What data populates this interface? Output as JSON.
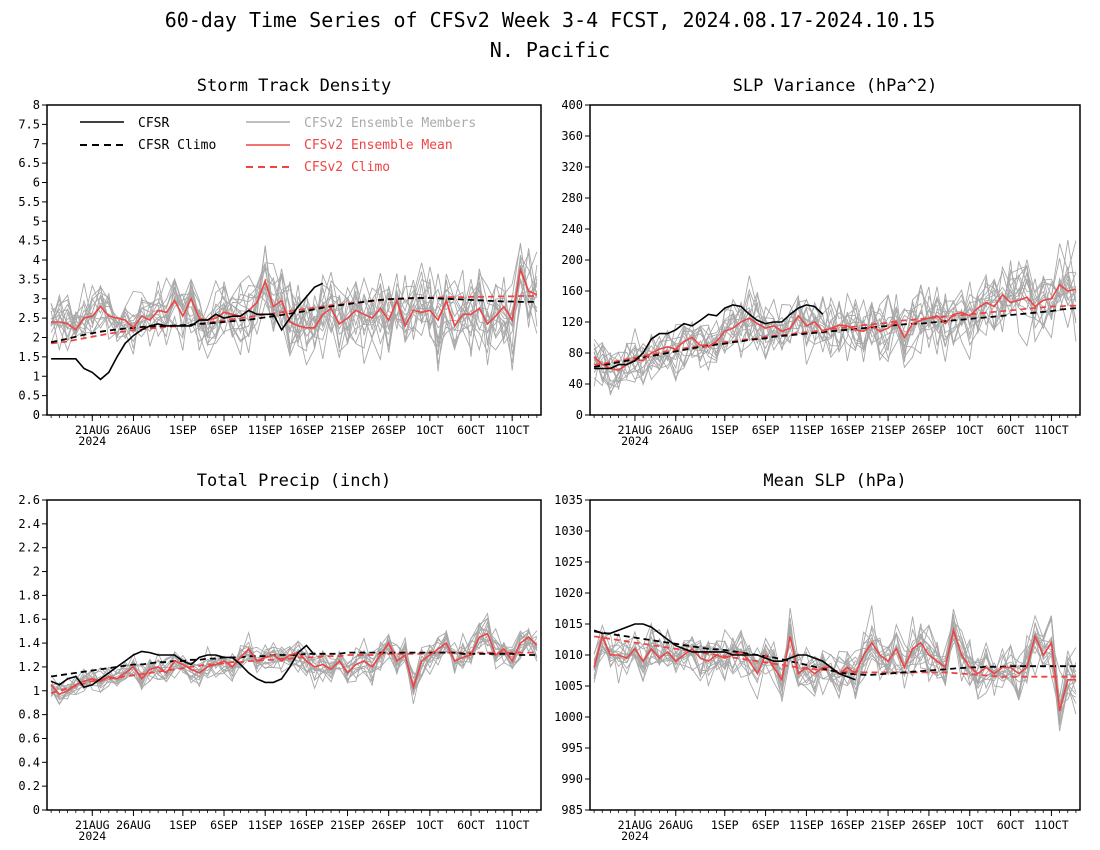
{
  "figure": {
    "title": "60-day Time Series of CFSv2 Week 3-4 FCST, 2024.08.17-2024.10.15",
    "subtitle": "N. Pacific"
  },
  "legend": {
    "cfsr": "CFSR",
    "cfsr_climo": "CFSR Climo",
    "members": "CFSv2 Ensemble Members",
    "ens_mean": "CFSv2 Ensemble Mean",
    "cfsv2_climo": "CFSv2 Climo"
  },
  "colors": {
    "cfsr": "#000000",
    "members": "#a8a8a8",
    "ens_mean": "#ee4444",
    "members_legend": "#aaaaaa"
  },
  "x_axis": {
    "ticks": [
      {
        "day": 5,
        "label": "21AUG"
      },
      {
        "day": 10,
        "label": "26AUG"
      },
      {
        "day": 16,
        "label": "1SEP"
      },
      {
        "day": 21,
        "label": "6SEP"
      },
      {
        "day": 26,
        "label": "11SEP"
      },
      {
        "day": 31,
        "label": "16SEP"
      },
      {
        "day": 36,
        "label": "21SEP"
      },
      {
        "day": 41,
        "label": "26SEP"
      },
      {
        "day": 46,
        "label": "1OCT"
      },
      {
        "day": 51,
        "label": "6OCT"
      },
      {
        "day": 56,
        "label": "11OCT"
      }
    ],
    "year_label": "2024"
  },
  "chart_data": [
    {
      "type": "line",
      "title": "Storm Track Density",
      "ylim": [
        0,
        8
      ],
      "yticks": [
        "0",
        "0.5",
        "1",
        "1.5",
        "2",
        "2.5",
        "3",
        "3.5",
        "4",
        "4.5",
        "5",
        "5.5",
        "6",
        "6.5",
        "7",
        "7.5",
        "8"
      ],
      "x": "day index 0-59 (2024-08-17 to 2024-10-15)",
      "series": [
        {
          "name": "CFSR",
          "values": [
            1.45,
            1.45,
            1.45,
            1.45,
            1.2,
            1.1,
            0.92,
            1.1,
            1.5,
            1.85,
            2.05,
            2.2,
            2.3,
            2.35,
            2.3,
            2.3,
            2.3,
            2.3,
            2.45,
            2.45,
            2.6,
            2.5,
            2.55,
            2.55,
            2.7,
            2.6,
            2.6,
            2.6,
            2.2,
            2.5,
            2.8,
            3.05,
            3.3,
            3.4
          ]
        },
        {
          "name": "CFSR Climo",
          "values": [
            1.88,
            1.92,
            1.97,
            2.02,
            2.07,
            2.11,
            2.15,
            2.18,
            2.21,
            2.23,
            2.25,
            2.27,
            2.28,
            2.29,
            2.3,
            2.31,
            2.32,
            2.33,
            2.35,
            2.36,
            2.38,
            2.4,
            2.42,
            2.44,
            2.46,
            2.49,
            2.52,
            2.55,
            2.58,
            2.62,
            2.65,
            2.69,
            2.73,
            2.77,
            2.8,
            2.83,
            2.86,
            2.89,
            2.92,
            2.95,
            2.97,
            2.99,
            3.0,
            3.01,
            3.02,
            3.02,
            3.02,
            3.01,
            3.0,
            2.99,
            2.98,
            2.97,
            2.96,
            2.95,
            2.94,
            2.93,
            2.93,
            2.92,
            2.92,
            2.92
          ]
        },
        {
          "name": "CFSv2 Ensemble Mean",
          "values": [
            2.4,
            2.4,
            2.35,
            2.2,
            2.5,
            2.55,
            2.8,
            2.55,
            2.5,
            2.45,
            2.25,
            2.55,
            2.45,
            2.7,
            2.65,
            2.95,
            2.55,
            3.0,
            2.5,
            2.45,
            2.5,
            2.65,
            2.6,
            2.55,
            2.7,
            2.9,
            3.45,
            2.8,
            2.95,
            2.4,
            2.3,
            2.25,
            2.25,
            2.6,
            2.75,
            2.35,
            2.5,
            2.7,
            2.6,
            2.5,
            2.75,
            2.45,
            2.95,
            2.3,
            2.7,
            2.65,
            2.7,
            2.45,
            2.95,
            2.3,
            2.6,
            2.6,
            2.75,
            2.35,
            2.55,
            2.8,
            2.45,
            3.75,
            3.2,
            3.1
          ]
        },
        {
          "name": "CFSv2 Climo",
          "values": [
            1.85,
            1.87,
            1.9,
            1.94,
            1.98,
            2.02,
            2.06,
            2.1,
            2.13,
            2.16,
            2.19,
            2.21,
            2.23,
            2.25,
            2.27,
            2.29,
            2.31,
            2.33,
            2.36,
            2.38,
            2.41,
            2.44,
            2.47,
            2.5,
            2.53,
            2.56,
            2.59,
            2.62,
            2.65,
            2.68,
            2.71,
            2.74,
            2.77,
            2.8,
            2.83,
            2.85,
            2.88,
            2.9,
            2.92,
            2.94,
            2.96,
            2.98,
            2.99,
            3.0,
            3.01,
            3.02,
            3.03,
            3.03,
            3.04,
            3.04,
            3.04,
            3.05,
            3.05,
            3.05,
            3.06,
            3.06,
            3.06,
            3.07,
            3.07,
            3.07
          ]
        }
      ]
    },
    {
      "type": "line",
      "title": "SLP Variance (hPa^2)",
      "ylim": [
        0,
        400
      ],
      "yticks": [
        "0",
        "40",
        "80",
        "120",
        "160",
        "200",
        "240",
        "280",
        "320",
        "360",
        "400"
      ],
      "x": "day index 0-59 (2024-08-17 to 2024-10-15)",
      "series": [
        {
          "name": "CFSR",
          "values": [
            60,
            60,
            60,
            65,
            65,
            70,
            80,
            98,
            105,
            105,
            110,
            118,
            115,
            122,
            130,
            128,
            138,
            142,
            140,
            130,
            122,
            118,
            120,
            120,
            130,
            138,
            142,
            140,
            130
          ]
        },
        {
          "name": "CFSR Climo",
          "values": [
            62,
            64,
            66,
            68,
            70,
            72,
            74,
            76,
            78,
            80,
            82,
            84,
            86,
            88,
            89,
            91,
            92,
            94,
            95,
            97,
            98,
            99,
            101,
            102,
            103,
            104,
            105,
            106,
            107,
            108,
            109,
            110,
            111,
            112,
            113,
            114,
            115,
            116,
            117,
            118,
            118,
            119,
            120,
            121,
            122,
            123,
            124,
            125,
            126,
            127,
            128,
            129,
            130,
            131,
            132,
            133,
            134,
            136,
            137,
            138
          ]
        },
        {
          "name": "CFSv2 Ensemble Mean",
          "values": [
            75,
            65,
            60,
            58,
            65,
            72,
            70,
            80,
            85,
            88,
            85,
            95,
            100,
            90,
            88,
            95,
            108,
            112,
            120,
            125,
            118,
            112,
            115,
            108,
            112,
            128,
            115,
            120,
            108,
            112,
            116,
            115,
            110,
            108,
            115,
            108,
            112,
            120,
            100,
            118,
            122,
            125,
            128,
            118,
            130,
            132,
            128,
            138,
            145,
            140,
            155,
            145,
            148,
            152,
            140,
            148,
            150,
            168,
            160,
            162
          ]
        },
        {
          "name": "CFSv2 Climo",
          "values": [
            65,
            66,
            68,
            70,
            72,
            74,
            76,
            78,
            80,
            82,
            84,
            86,
            88,
            89,
            91,
            92,
            94,
            95,
            97,
            98,
            99,
            101,
            102,
            103,
            104,
            106,
            107,
            108,
            109,
            111,
            112,
            113,
            114,
            116,
            117,
            118,
            119,
            121,
            122,
            123,
            124,
            125,
            126,
            127,
            128,
            129,
            130,
            131,
            132,
            133,
            134,
            135,
            136,
            137,
            138,
            139,
            140,
            140,
            141,
            141
          ]
        }
      ]
    },
    {
      "type": "line",
      "title": "Total Precip (inch)",
      "ylim": [
        0,
        2.6
      ],
      "yticks": [
        "0",
        "0.2",
        "0.4",
        "0.6",
        "0.8",
        "1",
        "1.2",
        "1.4",
        "1.6",
        "1.8",
        "2",
        "2.2",
        "2.4",
        "2.6"
      ],
      "x": "day index 0-59 (2024-08-17 to 2024-10-15)",
      "series": [
        {
          "name": "CFSR",
          "values": [
            1.08,
            1.05,
            1.1,
            1.12,
            1.03,
            1.05,
            1.1,
            1.15,
            1.2,
            1.25,
            1.3,
            1.33,
            1.32,
            1.3,
            1.3,
            1.3,
            1.25,
            1.22,
            1.28,
            1.3,
            1.3,
            1.28,
            1.28,
            1.22,
            1.15,
            1.1,
            1.07,
            1.07,
            1.1,
            1.2,
            1.32,
            1.38,
            1.3
          ]
        },
        {
          "name": "CFSR Climo",
          "values": [
            1.12,
            1.13,
            1.14,
            1.15,
            1.16,
            1.17,
            1.18,
            1.19,
            1.2,
            1.21,
            1.22,
            1.22,
            1.23,
            1.24,
            1.24,
            1.25,
            1.25,
            1.26,
            1.26,
            1.27,
            1.27,
            1.28,
            1.28,
            1.28,
            1.29,
            1.29,
            1.29,
            1.3,
            1.3,
            1.3,
            1.3,
            1.31,
            1.31,
            1.31,
            1.31,
            1.31,
            1.32,
            1.32,
            1.32,
            1.32,
            1.32,
            1.32,
            1.32,
            1.32,
            1.32,
            1.32,
            1.32,
            1.32,
            1.32,
            1.32,
            1.31,
            1.31,
            1.31,
            1.31,
            1.31,
            1.31,
            1.31,
            1.3,
            1.3,
            1.3
          ]
        },
        {
          "name": "CFSv2 Ensemble Mean",
          "values": [
            1.05,
            0.97,
            1.0,
            1.05,
            1.08,
            1.1,
            1.08,
            1.12,
            1.1,
            1.15,
            1.2,
            1.1,
            1.18,
            1.2,
            1.15,
            1.25,
            1.22,
            1.18,
            1.15,
            1.2,
            1.22,
            1.25,
            1.2,
            1.28,
            1.35,
            1.25,
            1.28,
            1.3,
            1.25,
            1.3,
            1.32,
            1.25,
            1.2,
            1.22,
            1.18,
            1.25,
            1.15,
            1.22,
            1.25,
            1.2,
            1.3,
            1.4,
            1.25,
            1.3,
            1.03,
            1.25,
            1.3,
            1.35,
            1.4,
            1.25,
            1.28,
            1.3,
            1.45,
            1.48,
            1.3,
            1.35,
            1.25,
            1.4,
            1.45,
            1.38
          ]
        },
        {
          "name": "CFSv2 Climo",
          "values": [
            0.98,
            1.0,
            1.02,
            1.04,
            1.06,
            1.08,
            1.09,
            1.1,
            1.11,
            1.12,
            1.13,
            1.14,
            1.15,
            1.16,
            1.17,
            1.18,
            1.19,
            1.2,
            1.21,
            1.22,
            1.22,
            1.23,
            1.24,
            1.24,
            1.25,
            1.25,
            1.26,
            1.26,
            1.27,
            1.27,
            1.28,
            1.28,
            1.28,
            1.29,
            1.29,
            1.29,
            1.3,
            1.3,
            1.3,
            1.3,
            1.31,
            1.31,
            1.31,
            1.31,
            1.31,
            1.31,
            1.32,
            1.32,
            1.32,
            1.32,
            1.32,
            1.32,
            1.32,
            1.32,
            1.32,
            1.32,
            1.32,
            1.32,
            1.32,
            1.32
          ]
        }
      ]
    },
    {
      "type": "line",
      "title": "Mean SLP (hPa)",
      "ylim": [
        985,
        1035
      ],
      "yticks": [
        "985",
        "990",
        "995",
        "1000",
        "1005",
        "1010",
        "1015",
        "1020",
        "1025",
        "1030",
        "1035"
      ],
      "x": "day index 0-59 (2024-08-17 to 2024-10-15)",
      "series": [
        {
          "name": "CFSR",
          "values": [
            1014,
            1013.5,
            1013.5,
            1014,
            1014.5,
            1015,
            1015,
            1014.5,
            1013.5,
            1012.5,
            1011.5,
            1011,
            1010.5,
            1010.5,
            1010.5,
            1010.5,
            1010.5,
            1010,
            1010,
            1010,
            1010,
            1009.5,
            1009,
            1009,
            1009.5,
            1010,
            1010,
            1009.5,
            1009,
            1008,
            1007,
            1006.5,
            1006
          ]
        },
        {
          "name": "CFSR Climo",
          "values": [
            1013.8,
            1013.6,
            1013.4,
            1013.2,
            1013.0,
            1012.8,
            1012.6,
            1012.4,
            1012.2,
            1012.0,
            1011.8,
            1011.6,
            1011.4,
            1011.2,
            1011.0,
            1010.9,
            1010.8,
            1010.6,
            1010.4,
            1010.2,
            1010.0,
            1009.8,
            1009.6,
            1009.3,
            1009.0,
            1008.7,
            1008.4,
            1008.1,
            1007.8,
            1007.5,
            1007.2,
            1007.0,
            1006.9,
            1006.8,
            1006.8,
            1006.9,
            1007.0,
            1007.1,
            1007.2,
            1007.3,
            1007.4,
            1007.5,
            1007.6,
            1007.7,
            1007.8,
            1007.9,
            1008.0,
            1008.0,
            1008.1,
            1008.1,
            1008.1,
            1008.2,
            1008.2,
            1008.2,
            1008.2,
            1008.2,
            1008.2,
            1008.2,
            1008.2,
            1008.2
          ]
        },
        {
          "name": "CFSv2 Ensemble Mean",
          "values": [
            1008,
            1013,
            1010,
            1010,
            1009.5,
            1011,
            1009,
            1011,
            1009.5,
            1010.5,
            1009,
            1010,
            1011,
            1009.5,
            1009,
            1010,
            1009.5,
            1010,
            1010.5,
            1009,
            1007,
            1010,
            1008,
            1006,
            1013,
            1007,
            1008,
            1007,
            1008,
            1008,
            1007,
            1008,
            1007,
            1010,
            1012,
            1010,
            1009,
            1011,
            1008,
            1011,
            1012,
            1010,
            1009,
            1008,
            1014,
            1010,
            1008,
            1007,
            1008,
            1007,
            1008,
            1008,
            1007,
            1008,
            1013,
            1010,
            1012,
            1001,
            1006,
            1006
          ]
        },
        {
          "name": "CFSv2 Climo",
          "values": [
            1013.0,
            1012.8,
            1012.6,
            1012.4,
            1012.2,
            1012.0,
            1011.8,
            1011.6,
            1011.4,
            1011.2,
            1011.0,
            1010.8,
            1010.6,
            1010.4,
            1010.2,
            1010.0,
            1009.8,
            1009.6,
            1009.4,
            1009.2,
            1009.0,
            1008.8,
            1008.6,
            1008.4,
            1008.2,
            1008.0,
            1007.8,
            1007.7,
            1007.6,
            1007.5,
            1007.4,
            1007.3,
            1007.3,
            1007.2,
            1007.2,
            1007.2,
            1007.2,
            1007.2,
            1007.2,
            1007.2,
            1007.2,
            1007.2,
            1007.2,
            1007.2,
            1007.1,
            1007.0,
            1006.9,
            1006.8,
            1006.7,
            1006.6,
            1006.5,
            1006.5,
            1006.5,
            1006.5,
            1006.5,
            1006.5,
            1006.5,
            1006.5,
            1006.5,
            1006.5
          ]
        }
      ]
    }
  ]
}
